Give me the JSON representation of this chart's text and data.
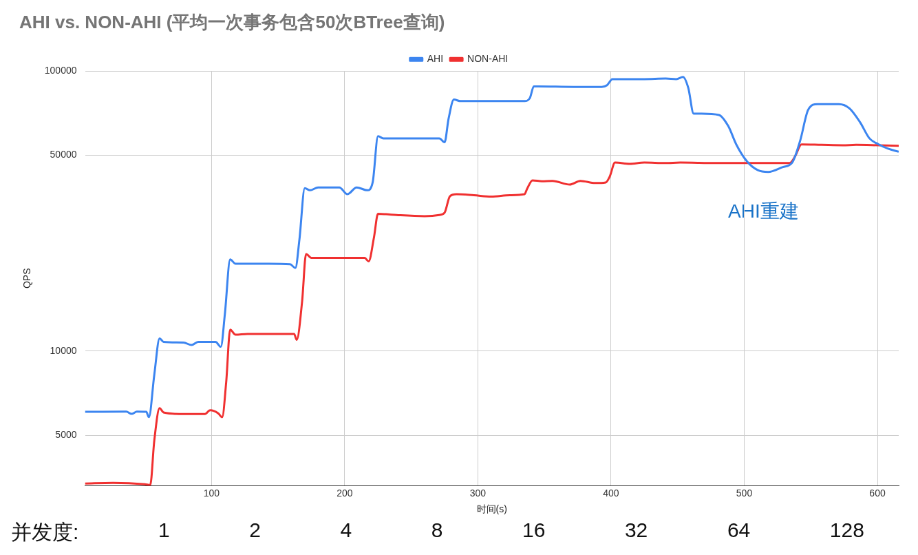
{
  "chart_data": {
    "type": "line",
    "title": "AHI vs. NON-AHI (平均一次事务包含50次BTree查询)",
    "xlabel": "时间(s)",
    "ylabel": "QPS",
    "log": "y",
    "grid": true,
    "legend": "top",
    "marker": "none",
    "line_style": "solid",
    "xlim": [
      5,
      616
    ],
    "xticks": [
      100,
      200,
      300,
      400,
      500,
      600
    ],
    "ylim": [
      3300,
      100000
    ],
    "yticks": [
      5000,
      10000,
      50000,
      100000
    ],
    "series": [
      {
        "name": "AHI",
        "color": "#3c85f0",
        "x": [
          5,
          36,
          40,
          44,
          51,
          53,
          57,
          61,
          64,
          79,
          85,
          90,
          103,
          107,
          110,
          114,
          118,
          143,
          159,
          163,
          166,
          170,
          174,
          180,
          196,
          202,
          209,
          217,
          221,
          225,
          229,
          249,
          271,
          275,
          278,
          282,
          287,
          303,
          335,
          339,
          342,
          345,
          372,
          393,
          397,
          401,
          425,
          441,
          449,
          454,
          458,
          462,
          468,
          481,
          488,
          494,
          502,
          510,
          518,
          529,
          536,
          542,
          548,
          555,
          571,
          579,
          587,
          594,
          601,
          608,
          616
        ],
        "values": [
          6060,
          6070,
          5960,
          6070,
          6060,
          5800,
          8200,
          11080,
          10780,
          10720,
          10500,
          10780,
          10780,
          10350,
          13500,
          21240,
          20500,
          20500,
          20400,
          19800,
          25000,
          38150,
          37500,
          38400,
          38400,
          36300,
          38400,
          37500,
          40000,
          58500,
          57500,
          57500,
          57500,
          55700,
          67600,
          79100,
          78100,
          78100,
          78100,
          80000,
          88100,
          88100,
          87800,
          87800,
          89000,
          93600,
          93600,
          94000,
          93600,
          95300,
          87000,
          70500,
          70500,
          69700,
          63600,
          54700,
          47600,
          44300,
          43600,
          45400,
          47100,
          56400,
          72700,
          76200,
          76200,
          73600,
          65600,
          57500,
          54700,
          52800,
          51500
        ]
      },
      {
        "name": "NON-AHI",
        "color": "#f03030",
        "x": [
          5,
          26,
          50,
          54,
          57,
          61,
          64,
          79,
          95,
          99,
          105,
          108,
          111,
          114,
          118,
          127,
          143,
          162,
          164,
          168,
          171,
          175,
          196,
          215,
          218,
          222,
          225,
          231,
          239,
          260,
          271,
          275,
          279,
          284,
          297,
          310,
          324,
          335,
          337,
          341,
          348,
          356,
          369,
          377,
          388,
          396,
          399,
          403,
          414,
          425,
          441,
          452,
          478,
          505,
          534,
          538,
          543,
          558,
          574,
          584,
          601,
          616
        ],
        "values": [
          3360,
          3380,
          3340,
          3320,
          4770,
          6250,
          6030,
          5950,
          5950,
          6140,
          5990,
          5800,
          7720,
          11920,
          11430,
          11500,
          11500,
          11500,
          10960,
          15000,
          22200,
          21500,
          21500,
          21500,
          20900,
          25500,
          30900,
          30800,
          30600,
          30300,
          30600,
          31200,
          35700,
          36300,
          36000,
          35600,
          36000,
          36300,
          38000,
          40700,
          40400,
          40500,
          39300,
          40500,
          39800,
          40000,
          42000,
          47100,
          46600,
          47100,
          46900,
          47100,
          46900,
          46900,
          46900,
          49400,
          54700,
          54500,
          54300,
          54500,
          54300,
          54100
        ]
      }
    ],
    "annotations": [
      "AHI重建",
      "并发度:",
      "1",
      "2",
      "4",
      "8",
      "16",
      "32",
      "64",
      "128"
    ]
  }
}
